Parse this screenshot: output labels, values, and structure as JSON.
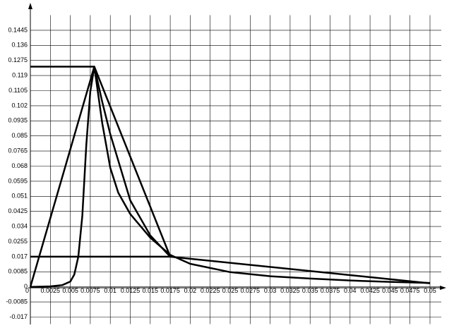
{
  "chart_data": {
    "type": "line",
    "xlim": [
      0,
      0.05
    ],
    "ylim": [
      -0.017,
      0.153
    ],
    "xticks": [
      0,
      0.0025,
      0.005,
      0.0075,
      0.01,
      0.0125,
      0.015,
      0.0175,
      0.02,
      0.0225,
      0.025,
      0.0275,
      0.03,
      0.0325,
      0.035,
      0.0375,
      0.04,
      0.0425,
      0.045,
      0.0475,
      0.05
    ],
    "yticks": [
      -0.017,
      -0.0085,
      0,
      0.0085,
      0.017,
      0.0255,
      0.034,
      0.0425,
      0.051,
      0.0595,
      0.068,
      0.0765,
      0.085,
      0.0935,
      0.102,
      0.1105,
      0.119,
      0.1275,
      0.136,
      0.1445
    ],
    "grid": true,
    "series": [
      {
        "color": "#000000",
        "x": [
          0,
          0.008
        ],
        "values": [
          0.124,
          0.124
        ]
      },
      {
        "color": "#000000",
        "x": [
          0,
          0.008,
          0.0175,
          0.05
        ],
        "values": [
          0,
          0.124,
          0.017,
          0.002
        ]
      },
      {
        "color": "#000000",
        "x": [
          0,
          0.0175
        ],
        "values": [
          0.017,
          0.017
        ]
      },
      {
        "color": "#000000",
        "x": [
          0,
          0.0025,
          0.004,
          0.005,
          0.0055,
          0.006,
          0.0065,
          0.007,
          0.0075,
          0.008,
          0.009,
          0.01,
          0.011,
          0.0125,
          0.015,
          0.0175,
          0.02,
          0.025,
          0.03,
          0.035,
          0.04,
          0.045,
          0.05
        ],
        "values": [
          0,
          0.0003,
          0.001,
          0.003,
          0.007,
          0.017,
          0.04,
          0.08,
          0.11,
          0.124,
          0.092,
          0.067,
          0.053,
          0.041,
          0.0277,
          0.018,
          0.013,
          0.0083,
          0.006,
          0.0047,
          0.0036,
          0.0028,
          0.0022
        ]
      },
      {
        "color": "#000000",
        "x": [
          0.008,
          0.009,
          0.01,
          0.0125,
          0.015,
          0.0175
        ],
        "values": [
          0.124,
          0.104,
          0.086,
          0.0487,
          0.029,
          0.017
        ]
      }
    ]
  }
}
